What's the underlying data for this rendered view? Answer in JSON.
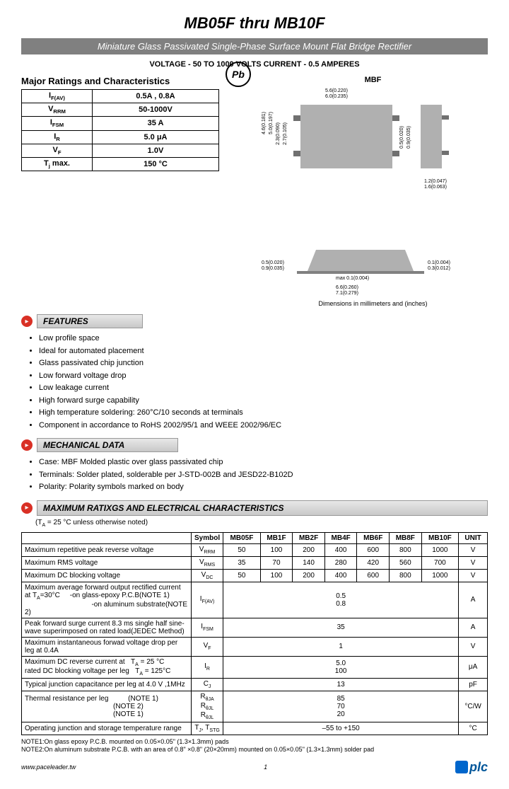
{
  "header": {
    "title": "MB05F thru MB10F",
    "banner": "Miniature Glass Passivated Single-Phase Surface Mount Flat Bridge Rectifier",
    "subtitle": "VOLTAGE - 50 TO 1000 VOLTS    CURRENT - 0.5 AMPERES"
  },
  "ratings_section": {
    "title": "Major Ratings and Characteristics",
    "rows": [
      {
        "sym": "I",
        "sub": "F(AV)",
        "val": "0.5A , 0.8A"
      },
      {
        "sym": "V",
        "sub": "RRM",
        "val": "50-1000V"
      },
      {
        "sym": "I",
        "sub": "FSM",
        "val": "35 A"
      },
      {
        "sym": "I",
        "sub": "R",
        "val": "5.0 μA"
      },
      {
        "sym": "V",
        "sub": "F",
        "val": "1.0V"
      },
      {
        "sym": "T",
        "sub": "j",
        "suffix": " max.",
        "val": "150 °C"
      }
    ]
  },
  "pb_label": "Pb",
  "diagram": {
    "label": "MBF",
    "dim_note": "Dimensions in millimeters and (inches)",
    "dims": {
      "w1": "5.6(0.220)",
      "w2": "6.0(0.235)",
      "h1": "4.6(0.181)",
      "h2": "5.0(0.197)",
      "p1": "2.3(0.090)",
      "p2": "2.7(0.105)",
      "t1": "0.5(0.020)",
      "t2": "0.9(0.035)",
      "s1": "1.2(0.047)",
      "s2": "1.6(0.063)",
      "b1": "0.5(0.020)",
      "b2": "0.9(0.035)",
      "m": "max 0.1(0.004)",
      "c1": "0.1(0.004)",
      "c2": "0.3(0.012)",
      "l1": "6.6(0.260)",
      "l2": "7.1(0.279)"
    }
  },
  "features": {
    "title": "FEATURES",
    "items": [
      "Low profile space",
      "Ideal for automated placement",
      "Glass passivated chip junction",
      "Low forward voltage drop",
      "Low leakage current",
      "High forward surge capability",
      "High temperature soldering: 260°C/10 seconds at terminals",
      "Component in accordance to RoHS 2002/95/1 and WEEE 2002/96/EC"
    ]
  },
  "mechanical": {
    "title": "MECHANICAL DATA",
    "items": [
      "Case: MBF Molded plastic over glass passivated chip",
      "Terminals: Solder plated, solderable per J-STD-002B and JESD22-B102D",
      "Polarity: Polarity symbols marked on body"
    ]
  },
  "spec": {
    "title": "MAXIMUM RATIXGS AND ELECTRICAL CHARACTERISTICS",
    "note": "(T",
    "note_sub": "A",
    "note2": " = 25 °C unless otherwise noted)",
    "cols": [
      "Symbol",
      "MB05F",
      "MB1F",
      "MB2F",
      "MB4F",
      "MB6F",
      "MB8F",
      "MB10F",
      "UNIT"
    ],
    "rows": [
      {
        "p": "Maximum repetitive peak reverse voltage",
        "sym": "V",
        "sub": "RRM",
        "v": [
          "50",
          "100",
          "200",
          "400",
          "600",
          "800",
          "1000"
        ],
        "u": "V"
      },
      {
        "p": "Maximum RMS voltage",
        "sym": "V",
        "sub": "RMS",
        "v": [
          "35",
          "70",
          "140",
          "280",
          "420",
          "560",
          "700"
        ],
        "u": "V"
      },
      {
        "p": "Maximum DC blocking voltage",
        "sym": "V",
        "sub": "DC",
        "v": [
          "50",
          "100",
          "200",
          "400",
          "600",
          "800",
          "1000"
        ],
        "u": "V"
      }
    ],
    "merged": [
      {
        "p": "Maximum average forward output rectified current at T<sub>A</sub>=30°C &nbsp;&nbsp;&nbsp;&nbsp;-on glass-epoxy P.C.B(NOTE 1)<br>&nbsp;&nbsp;&nbsp;&nbsp;&nbsp;&nbsp;&nbsp;&nbsp;&nbsp;&nbsp;&nbsp;&nbsp;&nbsp;&nbsp;&nbsp;&nbsp;&nbsp;&nbsp;&nbsp;&nbsp;&nbsp;&nbsp;&nbsp;&nbsp;&nbsp;&nbsp;&nbsp;&nbsp;&nbsp;&nbsp;&nbsp;&nbsp;&nbsp;&nbsp;-on aluminum substrate(NOTE 2)",
        "sym": "I",
        "sub": "F(AV)",
        "v": "0.5<br>0.8",
        "u": "A"
      },
      {
        "p": "Peak forward surge current 8.3 ms single half sine-wave superimposed on rated load(JEDEC Method)",
        "sym": "I",
        "sub": "FSM",
        "v": "35",
        "u": "A"
      },
      {
        "p": "Maximum instantaneous forwad voltage drop per leg at 0.4A",
        "sym": "V",
        "sub": "F",
        "v": "1",
        "u": "V"
      },
      {
        "p": "Maximum DC reverse current at &nbsp;&nbsp;T<sub>A</sub> = 25 °C<br>rated DC blocking voltage per leg &nbsp;&nbsp;T<sub>A</sub> = 125°C",
        "sym": "I",
        "sub": "R",
        "v": "5.0<br>100",
        "u": "μA"
      },
      {
        "p": "Typical junction capacitance per leg at 4.0 V ,1MHz",
        "sym": "C",
        "sub": "J",
        "v": "13",
        "u": "pF"
      }
    ],
    "thermal": {
      "p": "Thermal resistance per leg",
      "notes": [
        "(NOTE 1)",
        "(NOTE 2)",
        "(NOTE 1)"
      ],
      "syms": [
        "R<sub>θJA</sub>",
        "R<sub>θJL</sub>",
        "R<sub>θJL</sub>"
      ],
      "v": "85<br>70<br>20",
      "u": "°C/W"
    },
    "opj": {
      "p": "Operating junction and storage temperature range",
      "sym": "T<sub>J</sub>, T<sub>STG</sub>",
      "v": "–55 to +150",
      "u": "°C"
    }
  },
  "footnotes": [
    "NOTE1:On glass epoxy P.C.B. mounted on 0.05×0.05\" (1.3×1.3mm) pads",
    "NOTE2:On aluminum substrate P.C.B. with an area of 0.8\" ×0.8\" (20×20mm) mounted on 0.05×0.05\" (1.3×1.3mm) solder pad"
  ],
  "footer": {
    "url": "www.paceleader.tw",
    "page": "1",
    "brand": "plc"
  }
}
